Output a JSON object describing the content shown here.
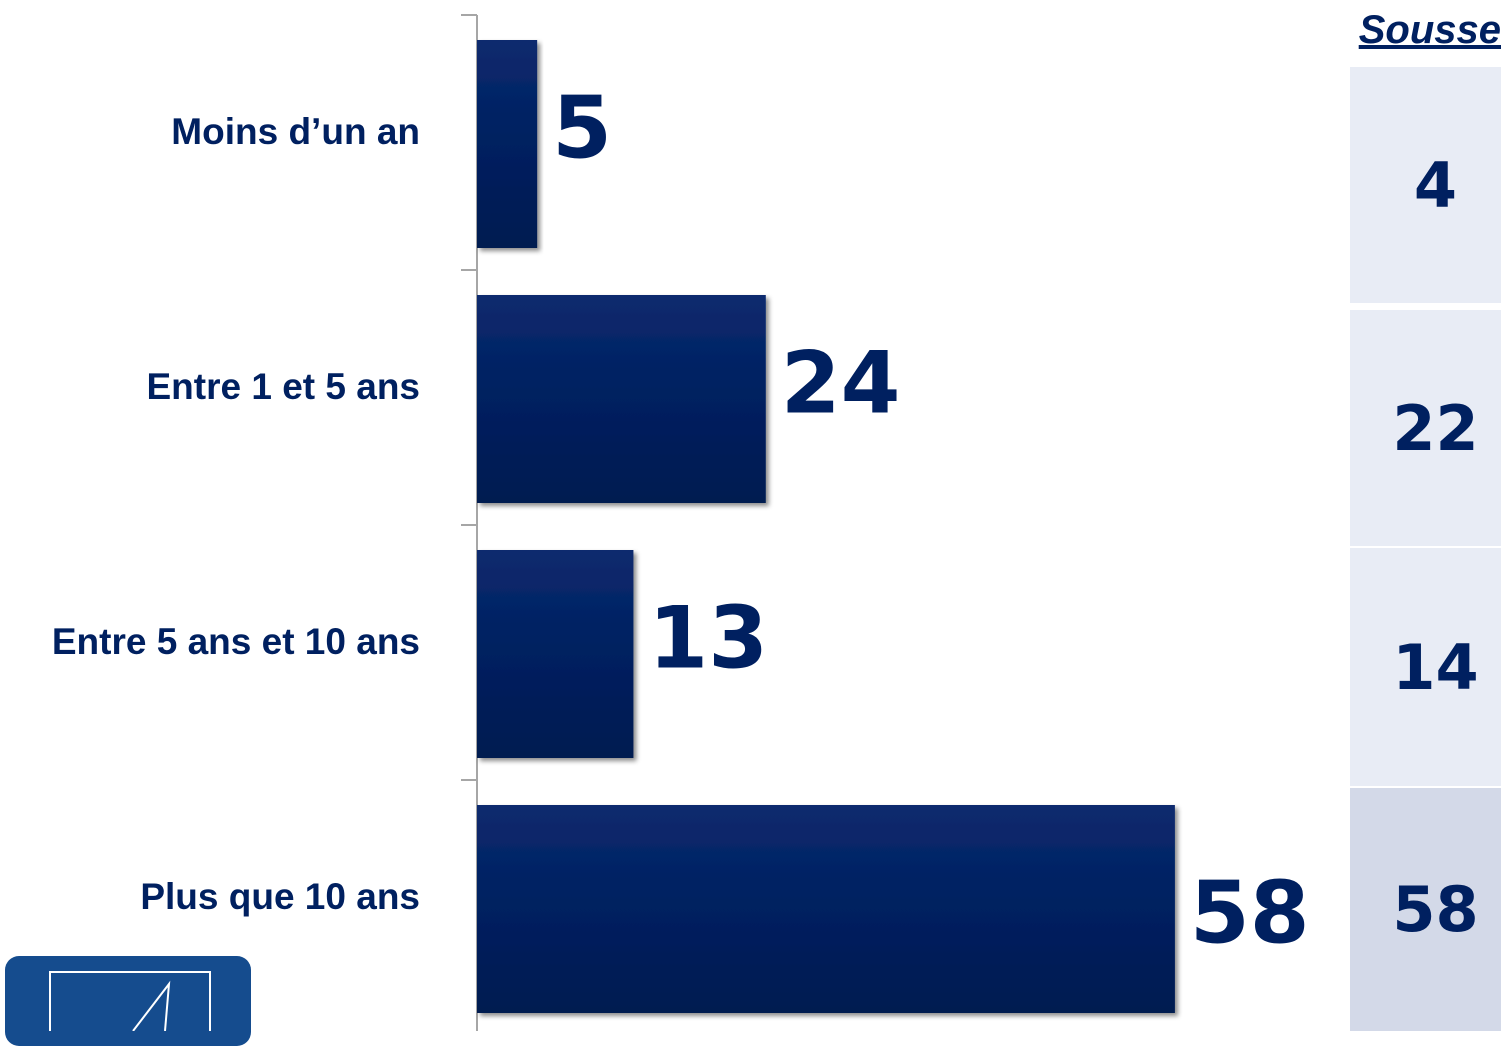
{
  "chart_data": {
    "type": "bar",
    "orientation": "horizontal",
    "categories": [
      "Moins d’un an",
      "Entre 1 et 5 ans",
      "Entre 5 ans et 10 ans",
      "Plus que 10 ans"
    ],
    "values": [
      5,
      24,
      13,
      58
    ],
    "xlim": [
      0,
      61
    ],
    "grid": false,
    "data_labels": true,
    "colors": {
      "bar": "#002060",
      "text": "#002060"
    }
  },
  "comparison_table": {
    "header": "Sousse",
    "values": [
      "4",
      "22",
      "14",
      "58"
    ],
    "cell_colors": [
      "#e8ecf5",
      "#e8ecf5",
      "#e8ecf5",
      "#d3d9e8"
    ]
  },
  "logo": {
    "icon": "institution-logo-icon",
    "color": "#154c8e"
  }
}
